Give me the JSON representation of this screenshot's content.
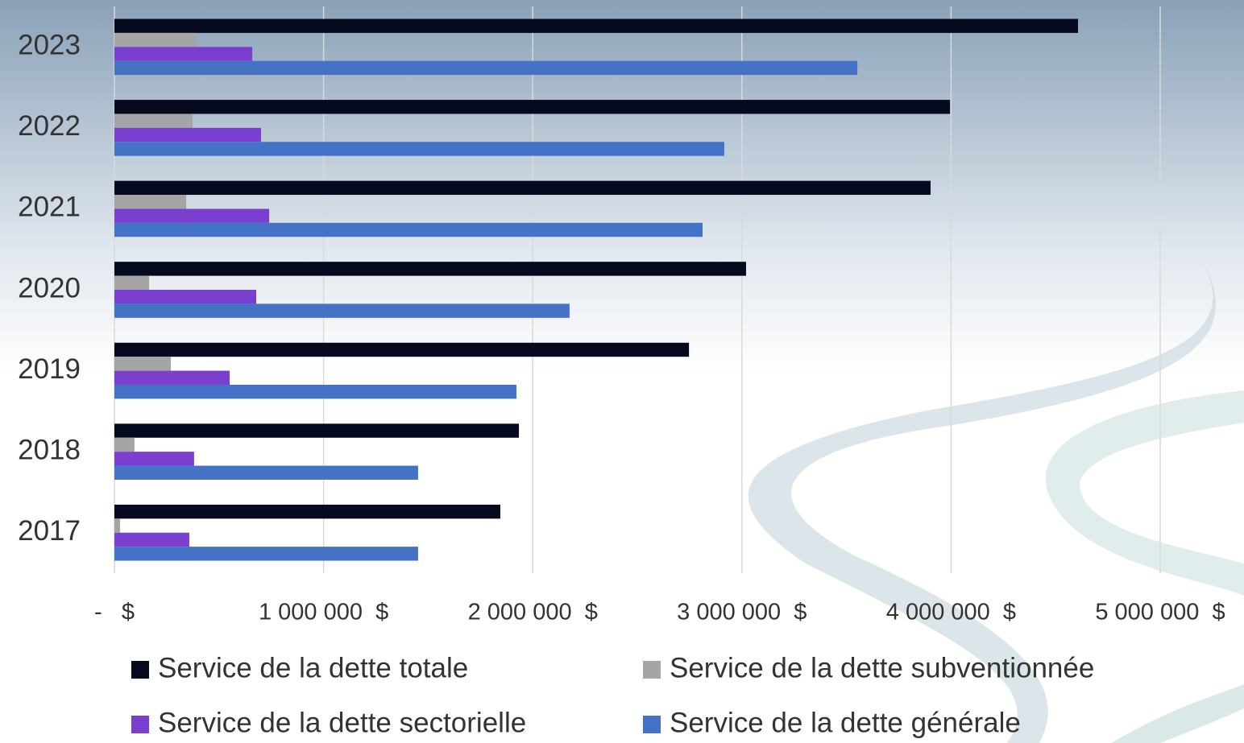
{
  "chart_data": {
    "type": "hbar",
    "categories": [
      "2023",
      "2022",
      "2021",
      "2020",
      "2019",
      "2018",
      "2017"
    ],
    "series": [
      {
        "name": "Service de la dette totale",
        "color": "#050a1e",
        "values": [
          4607000,
          3995000,
          3902000,
          3020000,
          2747000,
          1934000,
          1845000
        ]
      },
      {
        "name": "Service de la dette subventionnée",
        "color": "#a5a5a5",
        "values": [
          393000,
          374000,
          343000,
          166000,
          270000,
          96000,
          27000
        ]
      },
      {
        "name": "Service de la dette sectorielle",
        "color": "#7b3fd0",
        "values": [
          659000,
          701000,
          740000,
          678000,
          551000,
          381000,
          358000
        ]
      },
      {
        "name": "Service de la dette générale",
        "color": "#4472c4",
        "values": [
          3552000,
          2916000,
          2812000,
          2176000,
          1922000,
          1452000,
          1452000
        ]
      }
    ],
    "xlim": [
      0,
      5000000
    ],
    "xticks": [
      {
        "value": 0,
        "label": "-   $"
      },
      {
        "value": 1000000,
        "label": "1 000 000  $"
      },
      {
        "value": 2000000,
        "label": "2 000 000  $"
      },
      {
        "value": 3000000,
        "label": "3 000 000  $"
      },
      {
        "value": 4000000,
        "label": "4 000 000  $"
      },
      {
        "value": 5000000,
        "label": "5 000 000  $"
      }
    ],
    "grid": true
  }
}
